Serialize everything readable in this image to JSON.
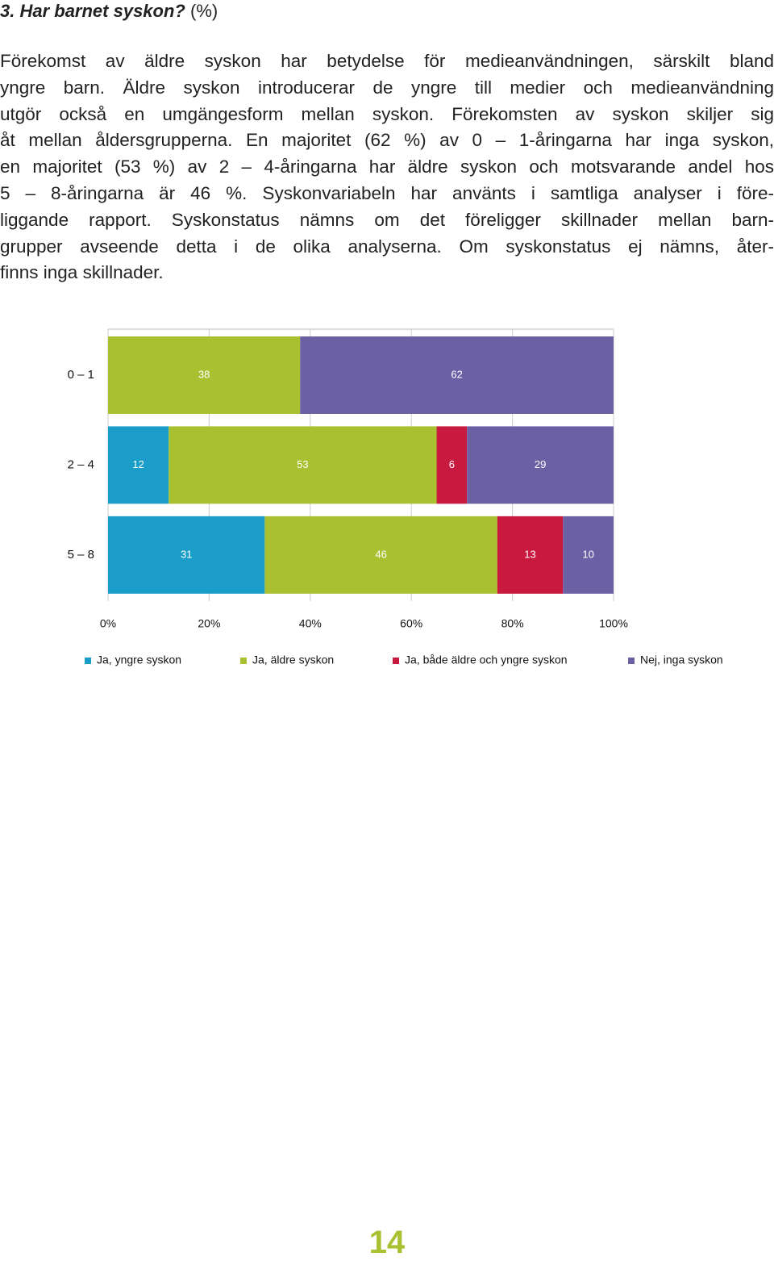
{
  "title": {
    "main": "3. Har barnet syskon?",
    "suffix": "(%)"
  },
  "paragraph_lines": [
    "Förekomst av äldre syskon har betydelse för medieanvändningen, särskilt bland",
    "yngre barn. Äldre syskon introducerar de yngre till medier och medieanvändning",
    "utgör också en umgängesform mellan syskon. Förekomsten av syskon skiljer sig",
    "åt mellan åldersgrupperna. En majoritet (62 %) av 0 – 1-åringarna har inga syskon,",
    "en majoritet (53 %) av 2 – 4-åringarna har äldre syskon och motsvarande andel hos",
    "5 – 8-åringarna är 46 %. Syskonvariabeln har använts i samtliga analyser i före-",
    "liggande rapport. Syskonstatus nämns om det föreligger skillnader mellan barn-",
    "grupper avseende detta i de olika analyserna. Om syskonstatus ej nämns, åter-",
    "finns inga skillnader."
  ],
  "chart_data": {
    "type": "stacked-bar-horizontal",
    "categories": [
      "0 – 1",
      "2 – 4",
      "5 – 8"
    ],
    "series": [
      {
        "name": "Ja, yngre syskon",
        "color": "#1a9dc8",
        "values": [
          null,
          12,
          31
        ]
      },
      {
        "name": "Ja, äldre syskon",
        "color": "#a9c131",
        "values": [
          38,
          53,
          46
        ]
      },
      {
        "name": "Ja, både äldre och yngre syskon",
        "color": "#c8193e",
        "values": [
          null,
          6,
          13
        ]
      },
      {
        "name": "Nej, inga syskon",
        "color": "#6c60a4",
        "values": [
          62,
          29,
          10
        ]
      }
    ],
    "xlim": [
      0,
      100
    ],
    "xticks": [
      {
        "value": 0,
        "label": "0%"
      },
      {
        "value": 20,
        "label": "20%"
      },
      {
        "value": 40,
        "label": "40%"
      },
      {
        "value": 60,
        "label": "60%"
      },
      {
        "value": 80,
        "label": "80%"
      },
      {
        "value": 100,
        "label": "100%"
      }
    ],
    "grid": true
  },
  "page_number": "14"
}
